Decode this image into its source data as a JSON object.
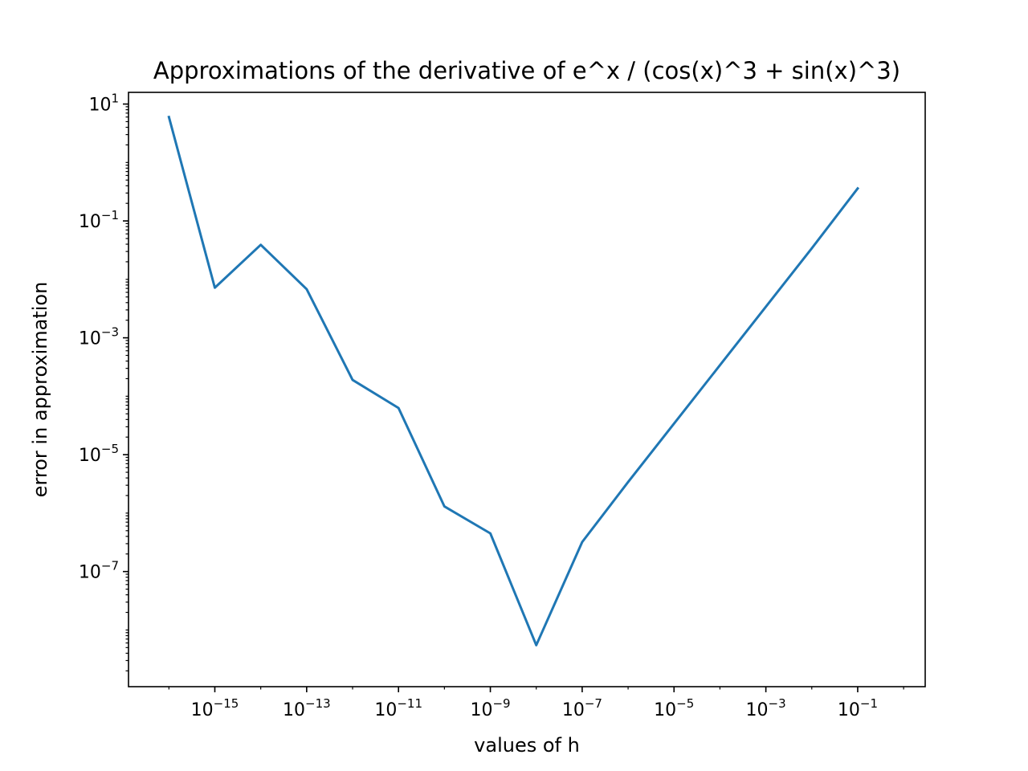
{
  "chart_data": {
    "type": "line",
    "title": "Approximations of the derivative of e^x / (cos(x)^3 + sin(x)^3)",
    "xlabel": "values of h",
    "ylabel": "error in approximation",
    "xscale": "log",
    "yscale": "log",
    "xlim_log10": [
      -16.88,
      0.47
    ],
    "ylim_log10": [
      -8.97,
      1.2
    ],
    "grid": false,
    "legend": "none",
    "x_ticks": [
      {
        "exp": -15,
        "base": "10",
        "sup": "−15"
      },
      {
        "exp": -13,
        "base": "10",
        "sup": "−13"
      },
      {
        "exp": -11,
        "base": "10",
        "sup": "−11"
      },
      {
        "exp": -9,
        "base": "10",
        "sup": "−9"
      },
      {
        "exp": -7,
        "base": "10",
        "sup": "−7"
      },
      {
        "exp": -5,
        "base": "10",
        "sup": "−5"
      },
      {
        "exp": -3,
        "base": "10",
        "sup": "−3"
      },
      {
        "exp": -1,
        "base": "10",
        "sup": "−1"
      }
    ],
    "y_ticks": [
      {
        "exp": 1,
        "base": "10",
        "sup": "1"
      },
      {
        "exp": -1,
        "base": "10",
        "sup": "−1"
      },
      {
        "exp": -3,
        "base": "10",
        "sup": "−3"
      },
      {
        "exp": -5,
        "base": "10",
        "sup": "−5"
      },
      {
        "exp": -7,
        "base": "10",
        "sup": "−7"
      }
    ],
    "series": [
      {
        "color": "#1f77b4",
        "x": [
          1e-16,
          1e-15,
          1e-14,
          1e-13,
          1e-12,
          1e-11,
          1e-10,
          1e-09,
          1e-08,
          1e-07,
          1e-06,
          1e-05,
          0.0001,
          0.001,
          0.01,
          0.1
        ],
        "y": [
          6.0,
          0.0072,
          0.039,
          0.0068,
          0.00019,
          6.3e-05,
          1.3e-06,
          4.5e-07,
          5.5e-09,
          3.2e-07,
          3.4e-06,
          3.4e-05,
          0.00034,
          0.0034,
          0.034,
          0.36
        ]
      }
    ]
  }
}
